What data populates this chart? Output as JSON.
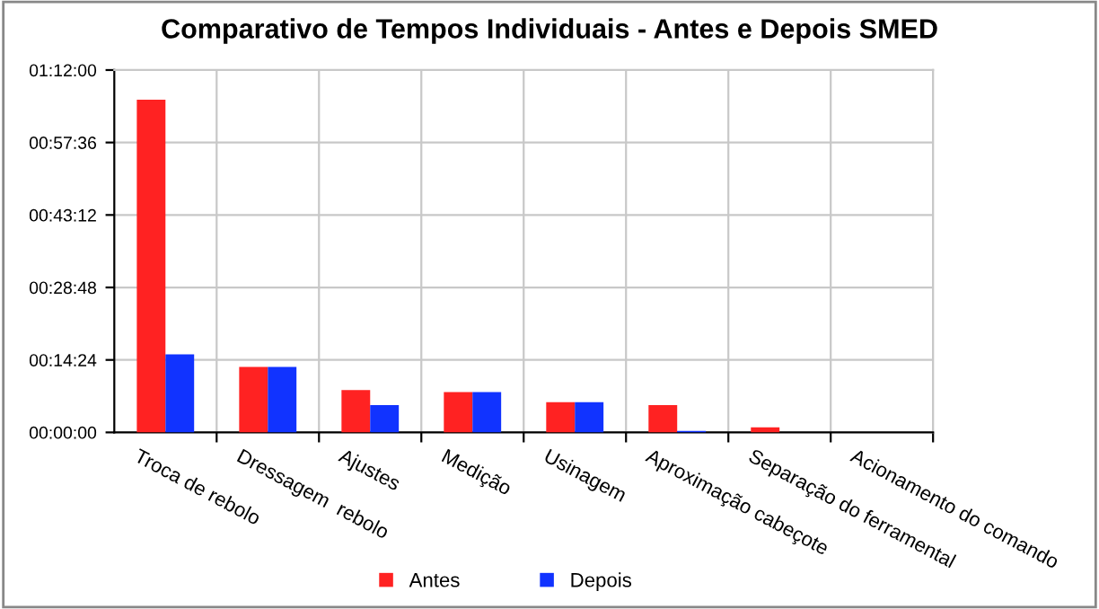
{
  "chart_data": {
    "type": "bar",
    "title": "Comparativo de Tempos Individuais - Antes e Depois SMED",
    "categories": [
      "Troca de rebolo",
      "Dressagem  rebolo",
      "Ajustes",
      "Medição",
      "Usinagem",
      "Aproximação cabeçote",
      "Separação do ferramental",
      "Acionamento do comando"
    ],
    "series": [
      {
        "name": "Antes",
        "color": "#ff2222",
        "values": [
          66.1,
          13.0,
          8.4,
          8.0,
          6.0,
          5.4,
          1.0,
          0
        ]
      },
      {
        "name": "Depois",
        "color": "#1133ff",
        "values": [
          15.5,
          13.0,
          5.4,
          8.0,
          6.0,
          0.3,
          0,
          0
        ]
      }
    ],
    "ylim": [
      0,
      72
    ],
    "yticks": [
      {
        "value": 0,
        "label": "00:00:00"
      },
      {
        "value": 14.4,
        "label": "00:14:24"
      },
      {
        "value": 28.8,
        "label": "00:28:48"
      },
      {
        "value": 43.2,
        "label": "00:43:12"
      },
      {
        "value": 57.6,
        "label": "00:57:36"
      },
      {
        "value": 72,
        "label": "01:12:00"
      }
    ],
    "grid": true,
    "legend": "bottom"
  }
}
